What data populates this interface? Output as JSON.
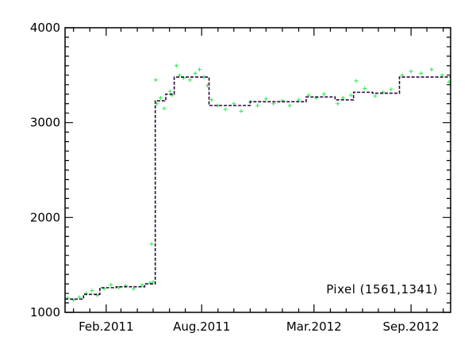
{
  "chart_data": {
    "type": "scatter",
    "title": "",
    "xlabel": "",
    "ylabel": "",
    "annotation": "Pixel (1561,1341)",
    "xlim": [
      "2010-11-15",
      "2012-11-15"
    ],
    "ylim": [
      1000,
      4000
    ],
    "x_ticks": [
      {
        "date": "2011-02-01",
        "label": "Feb.2011"
      },
      {
        "date": "2011-08-01",
        "label": "Aug.2011"
      },
      {
        "date": "2012-03-01",
        "label": "Mar.2012"
      },
      {
        "date": "2012-09-01",
        "label": "Sep.2012"
      }
    ],
    "y_ticks": [
      {
        "value": 1000,
        "label": "1000"
      },
      {
        "value": 2000,
        "label": "2000"
      },
      {
        "value": 3000,
        "label": "3000"
      },
      {
        "value": 4000,
        "label": "4000"
      }
    ],
    "grid": false,
    "series": [
      {
        "style": "step",
        "color": "#2a0a3a",
        "line_style": "dashed",
        "steps": [
          {
            "start": "2010-11-15",
            "end": "2010-12-20",
            "value": 1140
          },
          {
            "start": "2010-12-20",
            "end": "2011-01-20",
            "value": 1190
          },
          {
            "start": "2011-01-20",
            "end": "2011-02-20",
            "value": 1260
          },
          {
            "start": "2011-02-20",
            "end": "2011-04-15",
            "value": 1270
          },
          {
            "start": "2011-04-15",
            "end": "2011-05-05",
            "value": 1300
          },
          {
            "start": "2011-05-05",
            "end": "2011-05-25",
            "value": 3230
          },
          {
            "start": "2011-05-25",
            "end": "2011-06-10",
            "value": 3300
          },
          {
            "start": "2011-06-10",
            "end": "2011-08-15",
            "value": 3480
          },
          {
            "start": "2011-08-15",
            "end": "2011-11-01",
            "value": 3180
          },
          {
            "start": "2011-11-01",
            "end": "2012-02-15",
            "value": 3220
          },
          {
            "start": "2012-02-15",
            "end": "2012-04-10",
            "value": 3270
          },
          {
            "start": "2012-04-10",
            "end": "2012-05-15",
            "value": 3240
          },
          {
            "start": "2012-05-15",
            "end": "2012-06-20",
            "value": 3320
          },
          {
            "start": "2012-06-20",
            "end": "2012-08-10",
            "value": 3310
          },
          {
            "start": "2012-08-10",
            "end": "2012-11-15",
            "value": 3480
          }
        ]
      },
      {
        "style": "points",
        "marker": "+",
        "color": "#22ee44",
        "points": [
          [
            "2010-11-20",
            1150
          ],
          [
            "2010-12-01",
            1130
          ],
          [
            "2010-12-12",
            1160
          ],
          [
            "2010-12-25",
            1200
          ],
          [
            "2011-01-05",
            1230
          ],
          [
            "2011-01-15",
            1180
          ],
          [
            "2011-01-28",
            1250
          ],
          [
            "2011-02-10",
            1290
          ],
          [
            "2011-02-25",
            1260
          ],
          [
            "2011-03-10",
            1280
          ],
          [
            "2011-03-25",
            1250
          ],
          [
            "2011-04-10",
            1290
          ],
          [
            "2011-04-25",
            1310
          ],
          [
            "2011-05-01",
            1320
          ],
          [
            "2011-04-28",
            1720
          ],
          [
            "2011-05-06",
            3450
          ],
          [
            "2011-05-08",
            3200
          ],
          [
            "2011-05-15",
            3260
          ],
          [
            "2011-05-22",
            3150
          ],
          [
            "2011-06-02",
            3330
          ],
          [
            "2011-06-06",
            3290
          ],
          [
            "2011-06-14",
            3600
          ],
          [
            "2011-06-20",
            3500
          ],
          [
            "2011-06-28",
            3470
          ],
          [
            "2011-07-10",
            3450
          ],
          [
            "2011-07-20",
            3520
          ],
          [
            "2011-07-28",
            3560
          ],
          [
            "2011-08-05",
            3480
          ],
          [
            "2011-08-12",
            3390
          ],
          [
            "2011-08-20",
            3240
          ],
          [
            "2011-09-01",
            3180
          ],
          [
            "2011-09-15",
            3140
          ],
          [
            "2011-10-01",
            3200
          ],
          [
            "2011-10-15",
            3120
          ],
          [
            "2011-11-01",
            3220
          ],
          [
            "2011-11-15",
            3180
          ],
          [
            "2011-12-01",
            3250
          ],
          [
            "2011-12-15",
            3200
          ],
          [
            "2012-01-01",
            3230
          ],
          [
            "2012-01-15",
            3180
          ],
          [
            "2012-02-01",
            3240
          ],
          [
            "2012-02-20",
            3290
          ],
          [
            "2012-03-05",
            3260
          ],
          [
            "2012-03-20",
            3300
          ],
          [
            "2012-04-15",
            3200
          ],
          [
            "2012-04-25",
            3260
          ],
          [
            "2012-05-10",
            3290
          ],
          [
            "2012-05-20",
            3440
          ],
          [
            "2012-06-05",
            3360
          ],
          [
            "2012-06-25",
            3280
          ],
          [
            "2012-07-10",
            3320
          ],
          [
            "2012-07-25",
            3350
          ],
          [
            "2012-08-15",
            3500
          ],
          [
            "2012-09-01",
            3540
          ],
          [
            "2012-09-20",
            3520
          ],
          [
            "2012-10-10",
            3560
          ],
          [
            "2012-10-30",
            3500
          ],
          [
            "2012-11-12",
            3430
          ]
        ]
      }
    ]
  }
}
